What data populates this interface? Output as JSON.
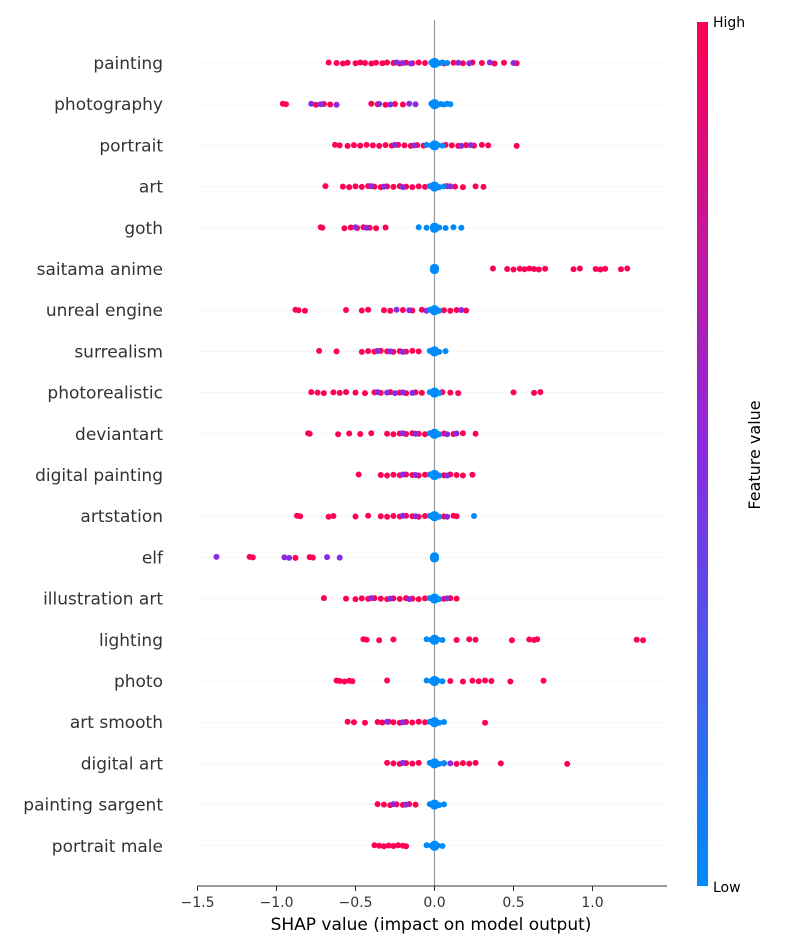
{
  "chart_data": {
    "type": "scatter",
    "subtype": "shap-beeswarm",
    "title": "",
    "xlabel": "SHAP value (impact on model output)",
    "ylabel": "",
    "xlim": [
      -1.5,
      1.4
    ],
    "xticks": [
      -1.5,
      -1.0,
      -0.5,
      0.0,
      0.5,
      1.0
    ],
    "xtick_labels": [
      "−1.5",
      "−1.0",
      "−0.5",
      "0.0",
      "0.5",
      "1.0"
    ],
    "colorbar": {
      "title": "Feature value",
      "high_label": "High",
      "low_label": "Low",
      "high_color": "#ff0052",
      "mid_color": "#8a2be2",
      "low_color": "#008bfb"
    },
    "grid": false,
    "features": [
      {
        "name": "painting",
        "high_points": [
          -0.67,
          -0.62,
          -0.58,
          -0.55,
          -0.5,
          -0.47,
          -0.44,
          -0.4,
          -0.37,
          -0.33,
          -0.3,
          -0.26,
          -0.22,
          -0.18,
          -0.14,
          -0.1,
          -0.06,
          0.06,
          0.12,
          0.18,
          0.24,
          0.3,
          0.38,
          0.44,
          0.52
        ],
        "mid_points": [
          -0.24,
          -0.2,
          -0.15,
          0.15,
          0.22,
          0.35,
          0.5
        ],
        "low_points": [
          -0.02,
          -0.01,
          0.0,
          0.01,
          0.03,
          0.05,
          0.08
        ]
      },
      {
        "name": "photography",
        "high_points": [
          -0.96,
          -0.94,
          -0.75,
          -0.7,
          -0.66,
          -0.4,
          -0.36,
          -0.31,
          -0.25,
          -0.2
        ],
        "mid_points": [
          -0.78,
          -0.72,
          -0.62,
          -0.35,
          -0.28,
          -0.16,
          -0.12
        ],
        "low_points": [
          -0.02,
          0.0,
          0.02,
          0.04,
          0.06,
          0.08,
          0.1
        ]
      },
      {
        "name": "portrait",
        "high_points": [
          -0.63,
          -0.6,
          -0.55,
          -0.51,
          -0.47,
          -0.43,
          -0.39,
          -0.35,
          -0.31,
          -0.27,
          -0.23,
          -0.19,
          -0.15,
          -0.11,
          -0.07,
          0.07,
          0.11,
          0.15,
          0.2,
          0.25,
          0.3,
          0.34,
          0.52
        ],
        "mid_points": [
          -0.25,
          -0.13,
          0.17,
          0.23
        ],
        "low_points": [
          -0.05,
          -0.02,
          0.0,
          0.02,
          0.05
        ]
      },
      {
        "name": "art",
        "high_points": [
          -0.69,
          -0.58,
          -0.54,
          -0.5,
          -0.46,
          -0.42,
          -0.38,
          -0.34,
          -0.3,
          -0.26,
          -0.22,
          -0.18,
          -0.14,
          -0.1,
          -0.06,
          0.08,
          0.13,
          0.18,
          0.26,
          0.31
        ],
        "mid_points": [
          -0.4,
          -0.32,
          -0.2,
          0.1
        ],
        "low_points": [
          -0.03,
          0.0,
          0.03,
          0.06
        ]
      },
      {
        "name": "goth",
        "high_points": [
          -0.72,
          -0.71,
          -0.57,
          -0.53,
          -0.49,
          -0.45,
          -0.41,
          -0.37,
          -0.31
        ],
        "mid_points": [
          -0.5,
          -0.43
        ],
        "low_points": [
          -0.1,
          -0.05,
          0.0,
          0.03,
          0.07,
          0.12,
          0.17
        ]
      },
      {
        "name": "saitama anime",
        "high_points": [
          0.37,
          0.46,
          0.5,
          0.54,
          0.57,
          0.6,
          0.63,
          0.66,
          0.7,
          0.88,
          0.92,
          1.02,
          1.05,
          1.08,
          1.18,
          1.22
        ],
        "mid_points": [],
        "low_points": [
          0.0,
          0.0,
          0.0
        ]
      },
      {
        "name": "unreal engine",
        "high_points": [
          -0.88,
          -0.86,
          -0.82,
          -0.56,
          -0.46,
          -0.42,
          -0.32,
          -0.28,
          -0.2,
          -0.14,
          -0.08,
          0.06,
          0.1,
          0.14,
          0.2
        ],
        "mid_points": [
          -0.24,
          -0.16,
          -0.05,
          0.17
        ],
        "low_points": [
          -0.03,
          0.0,
          0.03
        ]
      },
      {
        "name": "surrealism",
        "high_points": [
          -0.73,
          -0.62,
          -0.46,
          -0.42,
          -0.38,
          -0.34,
          -0.3,
          -0.26,
          -0.22,
          -0.18,
          -0.14,
          -0.1
        ],
        "mid_points": [
          -0.36,
          -0.28,
          -0.2
        ],
        "low_points": [
          -0.03,
          0.0,
          0.03,
          0.07
        ]
      },
      {
        "name": "photorealistic",
        "high_points": [
          -0.78,
          -0.74,
          -0.7,
          -0.64,
          -0.6,
          -0.56,
          -0.5,
          -0.44,
          -0.38,
          -0.34,
          -0.28,
          -0.22,
          -0.18,
          -0.12,
          -0.08,
          0.05,
          0.1,
          0.15,
          0.5,
          0.63,
          0.67
        ],
        "mid_points": [
          -0.36,
          -0.3,
          -0.25,
          -0.2,
          -0.14
        ],
        "low_points": [
          -0.03,
          0.0,
          0.03
        ]
      },
      {
        "name": "deviantart",
        "high_points": [
          -0.8,
          -0.79,
          -0.61,
          -0.54,
          -0.47,
          -0.4,
          -0.3,
          -0.26,
          -0.22,
          -0.18,
          -0.14,
          -0.1,
          -0.06,
          0.06,
          0.12,
          0.18,
          0.26
        ],
        "mid_points": [
          -0.2,
          -0.12,
          0.08,
          0.14
        ],
        "low_points": [
          -0.03,
          0.0,
          0.03
        ]
      },
      {
        "name": "digital painting",
        "high_points": [
          -0.48,
          -0.34,
          -0.3,
          -0.26,
          -0.22,
          -0.18,
          -0.14,
          -0.1,
          -0.06,
          0.06,
          0.1,
          0.14,
          0.18,
          0.24
        ],
        "mid_points": [
          -0.2,
          -0.12,
          0.08
        ],
        "low_points": [
          -0.03,
          0.0,
          0.03
        ]
      },
      {
        "name": "artstation",
        "high_points": [
          -0.87,
          -0.85,
          -0.67,
          -0.64,
          -0.5,
          -0.42,
          -0.34,
          -0.3,
          -0.26,
          -0.22,
          -0.18,
          -0.14,
          -0.1,
          -0.06,
          0.06,
          0.12,
          0.14
        ],
        "mid_points": [
          -0.2,
          -0.12,
          0.08
        ],
        "low_points": [
          -0.03,
          0.0,
          0.03,
          0.25
        ]
      },
      {
        "name": "elf",
        "high_points": [
          -1.17,
          -1.15,
          -0.88,
          -0.79,
          -0.77
        ],
        "mid_points": [
          -1.38,
          -0.95,
          -0.92,
          -0.68,
          -0.6
        ],
        "low_points": [
          0.0,
          0.0,
          0.0
        ]
      },
      {
        "name": "illustration art",
        "high_points": [
          -0.7,
          -0.56,
          -0.5,
          -0.46,
          -0.42,
          -0.38,
          -0.34,
          -0.3,
          -0.26,
          -0.22,
          -0.18,
          -0.14,
          -0.1,
          -0.06,
          0.06,
          0.1,
          0.14
        ],
        "mid_points": [
          -0.4,
          -0.28,
          -0.16,
          0.08
        ],
        "low_points": [
          -0.03,
          0.0,
          0.03
        ]
      },
      {
        "name": "lighting",
        "high_points": [
          -0.45,
          -0.43,
          -0.35,
          -0.26,
          0.14,
          0.22,
          0.26,
          0.49,
          0.6,
          0.63,
          0.65,
          1.28,
          1.32
        ],
        "mid_points": [],
        "low_points": [
          -0.05,
          -0.02,
          0.0,
          0.02,
          0.05
        ]
      },
      {
        "name": "photo",
        "high_points": [
          -0.62,
          -0.6,
          -0.57,
          -0.54,
          -0.52,
          -0.3,
          0.1,
          0.18,
          0.24,
          0.28,
          0.32,
          0.36,
          0.48,
          0.69
        ],
        "mid_points": [],
        "low_points": [
          -0.05,
          -0.02,
          0.0,
          0.02,
          0.05
        ]
      },
      {
        "name": "art smooth",
        "high_points": [
          -0.55,
          -0.51,
          -0.44,
          -0.36,
          -0.33,
          -0.29,
          -0.26,
          -0.22,
          -0.18,
          -0.14,
          -0.1,
          -0.06,
          0.32
        ],
        "mid_points": [
          -0.3,
          -0.2
        ],
        "low_points": [
          -0.03,
          0.0,
          0.03,
          0.06
        ]
      },
      {
        "name": "digital art",
        "high_points": [
          -0.3,
          -0.26,
          -0.22,
          -0.18,
          -0.14,
          -0.1,
          0.06,
          0.14,
          0.18,
          0.22,
          0.26,
          0.42,
          0.84
        ],
        "mid_points": [
          -0.2,
          0.1
        ],
        "low_points": [
          -0.03,
          0.0,
          0.03,
          0.06
        ]
      },
      {
        "name": "painting sargent",
        "high_points": [
          -0.36,
          -0.32,
          -0.28,
          -0.24,
          -0.2,
          -0.16,
          -0.12
        ],
        "mid_points": [
          -0.26,
          -0.18
        ],
        "low_points": [
          -0.03,
          0.0,
          0.03,
          0.06
        ]
      },
      {
        "name": "portrait male",
        "high_points": [
          -0.38,
          -0.35,
          -0.32,
          -0.29,
          -0.26,
          -0.23,
          -0.2,
          -0.18
        ],
        "mid_points": [],
        "low_points": [
          -0.05,
          -0.02,
          0.0,
          0.02,
          0.05
        ]
      }
    ]
  }
}
